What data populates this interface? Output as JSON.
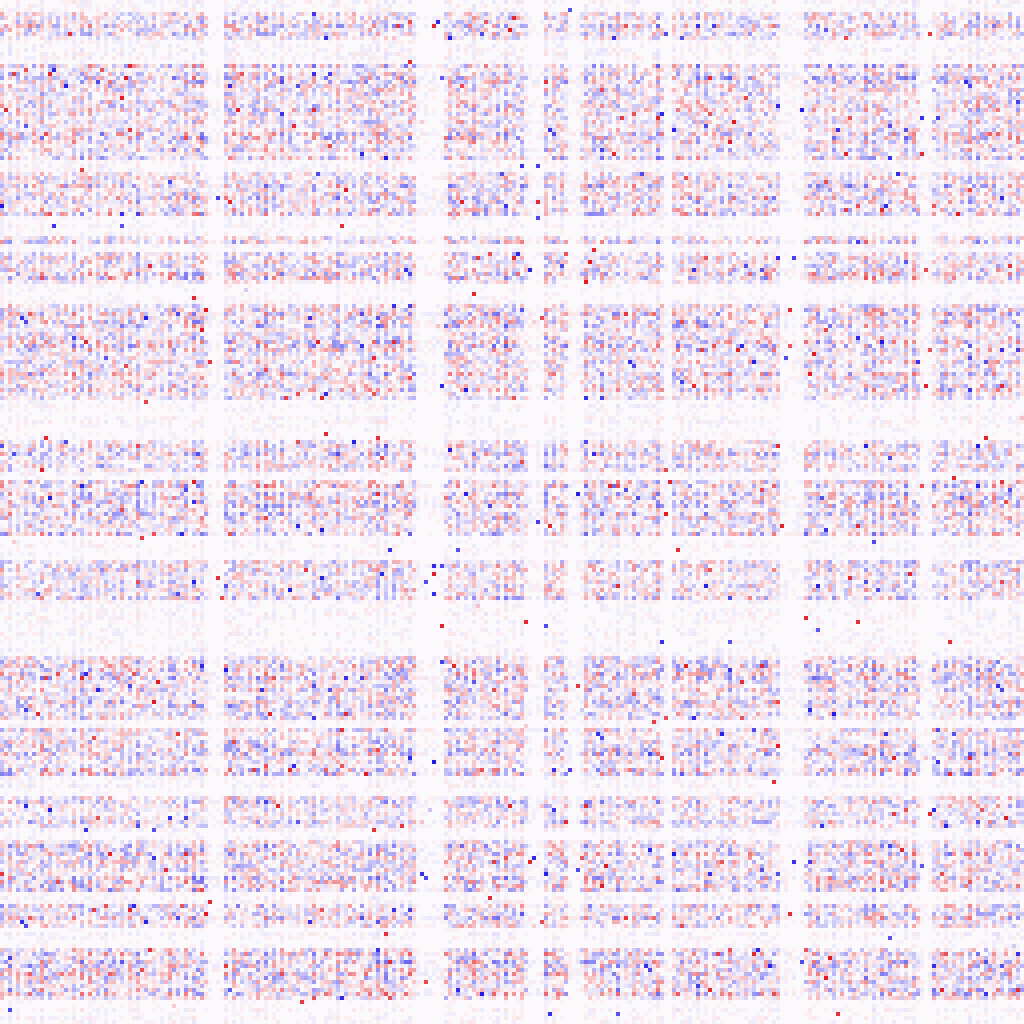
{
  "chart_data": {
    "type": "heatmap",
    "title": "",
    "xlabel": "",
    "ylabel": "",
    "rows": 256,
    "cols": 256,
    "value_range": [
      -1,
      1
    ],
    "colormap": {
      "name": "diverging-blue-white-red",
      "negative": "#1c16e6",
      "zero": "#fcf9fc",
      "positive": "#e0131a"
    },
    "axes_visible": false,
    "grid": false,
    "legend": "none",
    "structure": {
      "active_row_groups": [
        [
          3,
          9
        ],
        [
          16,
          39
        ],
        [
          43,
          53
        ],
        [
          59,
          60
        ],
        [
          63,
          70
        ],
        [
          76,
          99
        ],
        [
          110,
          117
        ],
        [
          120,
          133
        ],
        [
          140,
          149
        ],
        [
          164,
          179
        ],
        [
          182,
          193
        ],
        [
          199,
          206
        ],
        [
          210,
          222
        ],
        [
          226,
          231
        ],
        [
          237,
          249
        ]
      ],
      "sparse_row_groups": [
        [
          0,
          2
        ],
        [
          40,
          42
        ],
        [
          54,
          58
        ],
        [
          100,
          109
        ],
        [
          134,
          139
        ],
        [
          150,
          163
        ],
        [
          180,
          181
        ],
        [
          194,
          198
        ],
        [
          223,
          225
        ],
        [
          232,
          236
        ],
        [
          250,
          255
        ]
      ],
      "quiet_column_bands": [
        [
          52,
          55
        ],
        [
          104,
          110
        ],
        [
          132,
          135
        ],
        [
          142,
          144
        ],
        [
          166,
          167
        ],
        [
          195,
          200
        ],
        [
          230,
          232
        ]
      ],
      "dominant_sign_note_values": {
        "mean_value": 0.02,
        "abs_mean_in_active_rows": 0.18,
        "abs_mean_in_sparse_rows": 0.03,
        "max_abs_value": 1.0
      }
    }
  }
}
